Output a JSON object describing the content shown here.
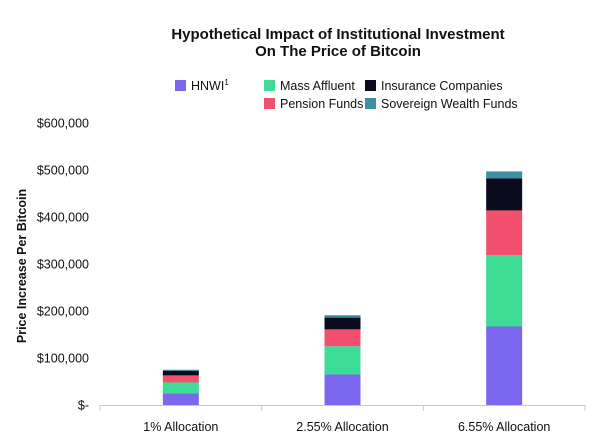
{
  "chart_data": {
    "type": "bar",
    "stacked": true,
    "title_lines": [
      "Hypothetical Impact of Institutional Investment",
      "On The Price of Bitcoin"
    ],
    "ylabel": "Price Increase Per Bitcoin",
    "xlabel": "",
    "ylim": [
      0,
      600000
    ],
    "yticks": [
      0,
      100000,
      200000,
      300000,
      400000,
      500000,
      600000
    ],
    "ytick_labels": [
      "$-",
      "$100,000",
      "$200,000",
      "$300,000",
      "$400,000",
      "$500,000",
      "$600,000"
    ],
    "grid": false,
    "legend_position": "top",
    "categories": [
      "1% Allocation",
      "2.55% Allocation",
      "6.55% Allocation"
    ],
    "series": [
      {
        "name": "HNWI",
        "superscript": "1",
        "color": "#7b68ee",
        "values": [
          25000,
          65000,
          167000
        ]
      },
      {
        "name": "Mass Affluent",
        "color": "#3ddc97",
        "values": [
          23000,
          60000,
          152000
        ]
      },
      {
        "name": "Pension Funds",
        "color": "#f2506e",
        "values": [
          15000,
          36000,
          95000
        ]
      },
      {
        "name": "Insurance Companies",
        "color": "#0b0b1e",
        "values": [
          10000,
          25000,
          68000
        ]
      },
      {
        "name": "Sovereign Wealth Funds",
        "color": "#3d8fa3",
        "values": [
          2000,
          5000,
          15000
        ]
      }
    ]
  }
}
